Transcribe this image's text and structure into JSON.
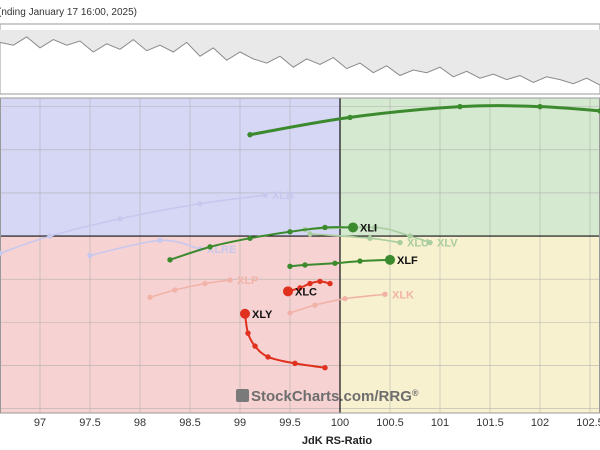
{
  "header": {
    "period_text": "(nding January 17 16:00, 2025)"
  },
  "watermark": {
    "text_a": "StockCharts.com",
    "text_b": "/RRG",
    "mark": "®"
  },
  "colors": {
    "improving": "#d6d6f5",
    "leading": "#d5e8d0",
    "weakening": "#f7f1cf",
    "lagging": "#f6d2d2",
    "strong_green": "#3c8a2e",
    "faded_green": "#a9cd9f",
    "faded_blue": "#c8c8ef",
    "strong_red": "#e0301e",
    "faded_red": "#f1b3a8",
    "benchmark_fill": "#e9e9e9",
    "benchmark_line": "#8a8a8a"
  },
  "chart_data": {
    "type": "scatter",
    "title": "",
    "xlabel": "JdK RS-Ratio",
    "ylabel": "",
    "xlim": [
      96.6,
      102.6
    ],
    "ylim": [
      95.9,
      103.2
    ],
    "x_ticks": [
      "97",
      "97.5",
      "98",
      "98.5",
      "99",
      "99.5",
      "100",
      "100.5",
      "101",
      "101.5",
      "102",
      "102.5"
    ],
    "x_tick_values": [
      97,
      97.5,
      98,
      98.5,
      99,
      99.5,
      100,
      100.5,
      101,
      101.5,
      102,
      102.5
    ],
    "center": [
      100,
      100
    ],
    "quadrants": [
      "Improving (top-left)",
      "Leading (top-right)",
      "Lagging (bottom-left)",
      "Weakening (bottom-right)"
    ],
    "benchmark_line": [
      62,
      60,
      66,
      58,
      64,
      60,
      63,
      55,
      61,
      57,
      64,
      56,
      60,
      55,
      62,
      52,
      58,
      49,
      55,
      50,
      47,
      52,
      44,
      50,
      46,
      51,
      43,
      47,
      40,
      45,
      38,
      42,
      40,
      44,
      37,
      41,
      36,
      39,
      35,
      38,
      33,
      37,
      35,
      32,
      36,
      31
    ],
    "series": [
      {
        "name": "",
        "role": "top-green",
        "color_key": "strong_green",
        "tail": [
          [
            99.1,
            102.35
          ],
          [
            100.1,
            102.75
          ],
          [
            101.2,
            103.0
          ],
          [
            102.0,
            103.0
          ],
          [
            102.6,
            102.9
          ]
        ],
        "label": "",
        "head": false
      },
      {
        "name": "XLB",
        "role": "faded",
        "color_key": "faded_blue",
        "tail": [
          [
            96.6,
            99.6
          ],
          [
            97.1,
            100.0
          ],
          [
            97.8,
            100.4
          ],
          [
            98.6,
            100.75
          ],
          [
            99.25,
            100.95
          ]
        ],
        "label": "XLB",
        "head": false
      },
      {
        "name": "XLRE",
        "role": "faded",
        "color_key": "faded_blue",
        "tail": [
          [
            97.5,
            99.55
          ],
          [
            98.2,
            99.9
          ],
          [
            98.6,
            99.7
          ]
        ],
        "label": "XLRE",
        "head": false
      },
      {
        "name": "XLI",
        "role": "active",
        "color_key": "strong_green",
        "tail": [
          [
            98.3,
            99.45
          ],
          [
            98.7,
            99.75
          ],
          [
            99.1,
            99.95
          ],
          [
            99.5,
            100.1
          ],
          [
            99.85,
            100.2
          ],
          [
            100.13,
            100.2
          ]
        ],
        "label": "XLI",
        "head": true
      },
      {
        "name": "XLV",
        "role": "faded",
        "color_key": "faded_green",
        "tail": [
          [
            99.65,
            100.15
          ],
          [
            100.35,
            100.2
          ],
          [
            100.7,
            100.0
          ],
          [
            100.9,
            99.85
          ]
        ],
        "label": "XLV",
        "head": false
      },
      {
        "name": "XLU",
        "role": "faded",
        "color_key": "faded_green",
        "tail": [
          [
            99.7,
            100.05
          ],
          [
            100.3,
            99.95
          ],
          [
            100.6,
            99.85
          ]
        ],
        "label": "XLU",
        "head": false
      },
      {
        "name": "XLF",
        "role": "active",
        "color_key": "strong_green",
        "tail": [
          [
            99.5,
            99.3
          ],
          [
            99.65,
            99.33
          ],
          [
            99.95,
            99.37
          ],
          [
            100.2,
            99.42
          ],
          [
            100.5,
            99.45
          ]
        ],
        "label": "XLF",
        "head": true
      },
      {
        "name": "XLP",
        "role": "faded",
        "color_key": "faded_red",
        "tail": [
          [
            98.1,
            98.58
          ],
          [
            98.35,
            98.75
          ],
          [
            98.65,
            98.9
          ],
          [
            98.9,
            98.98
          ]
        ],
        "label": "XLP",
        "head": false
      },
      {
        "name": "XLK",
        "role": "faded",
        "color_key": "faded_red",
        "tail": [
          [
            99.5,
            98.22
          ],
          [
            99.75,
            98.4
          ],
          [
            100.05,
            98.55
          ],
          [
            100.45,
            98.65
          ]
        ],
        "label": "XLK",
        "head": false
      },
      {
        "name": "XLC",
        "role": "active",
        "color_key": "strong_red",
        "tail": [
          [
            99.9,
            98.9
          ],
          [
            99.8,
            98.95
          ],
          [
            99.7,
            98.9
          ],
          [
            99.6,
            98.8
          ],
          [
            99.48,
            98.72
          ]
        ],
        "label": "XLC",
        "head": true
      },
      {
        "name": "XLY",
        "role": "active",
        "color_key": "strong_red",
        "tail": [
          [
            99.85,
            96.95
          ],
          [
            99.55,
            97.05
          ],
          [
            99.28,
            97.2
          ],
          [
            99.15,
            97.45
          ],
          [
            99.08,
            97.75
          ],
          [
            99.05,
            98.2
          ]
        ],
        "label": "XLY",
        "head": true
      }
    ]
  }
}
